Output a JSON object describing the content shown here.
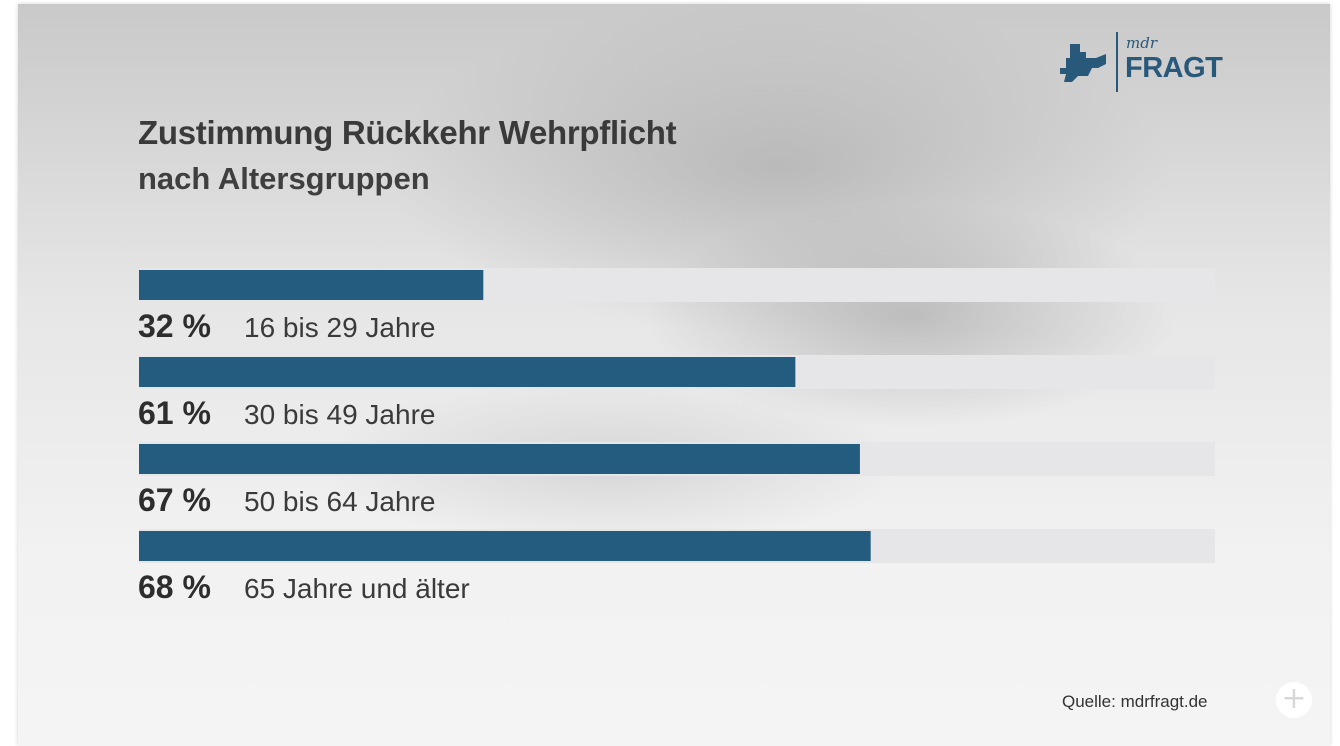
{
  "logo": {
    "small_text": "mdr",
    "big_text": "FRAGT",
    "icon": "mdr-logo-icon",
    "color": "#28587a"
  },
  "colors": {
    "bar": "#235c7f",
    "track": "#e6e6e8"
  },
  "source": "Quelle: mdrfragt.de",
  "plus_icon": "+",
  "chart_data": {
    "type": "bar",
    "orientation": "horizontal",
    "title": "Zustimmung Rückkehr Wehrpflicht",
    "subtitle": "nach Altersgruppen",
    "categories": [
      "16 bis 29 Jahre",
      "30 bis 49 Jahre",
      "50 bis 64 Jahre",
      "65 Jahre und älter"
    ],
    "values": [
      32,
      61,
      67,
      68
    ],
    "value_labels": [
      "32 %",
      "61 %",
      "67 %",
      "68 %"
    ],
    "unit": "%",
    "xlim": [
      0,
      100
    ],
    "grid": false,
    "legend": "none"
  }
}
